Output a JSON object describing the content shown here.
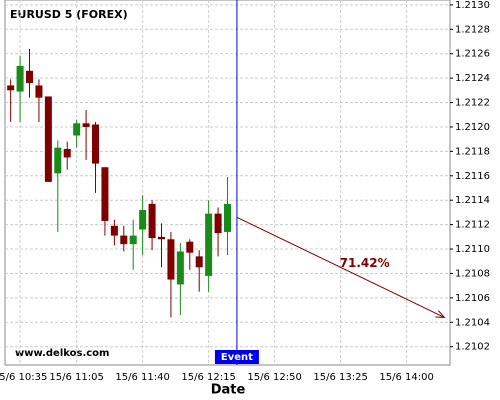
{
  "chart_data": {
    "type": "candlestick",
    "title": "EURUSD 5 (FOREX)",
    "watermark": "www.delkos.com",
    "x_label": "Date",
    "x": [
      "15/6 10:30",
      "15/6 10:35",
      "15/6 10:40",
      "15/6 10:45",
      "15/6 10:50",
      "15/6 10:55",
      "15/6 11:00",
      "15/6 11:05",
      "15/6 11:10",
      "15/6 11:15",
      "15/6 11:20",
      "15/6 11:25",
      "15/6 11:30",
      "15/6 11:35",
      "15/6 11:40",
      "15/6 11:45",
      "15/6 11:50",
      "15/6 11:55",
      "15/6 12:00",
      "15/6 12:05",
      "15/6 12:10",
      "15/6 12:15",
      "15/6 12:20",
      "15/6 12:25"
    ],
    "open": [
      1.21234,
      1.21229,
      1.21246,
      1.21234,
      1.21225,
      1.21162,
      1.21182,
      1.21193,
      1.21203,
      1.21202,
      1.21167,
      1.21119,
      1.21111,
      1.21104,
      1.21116,
      1.21137,
      1.2111,
      1.21108,
      1.21071,
      1.21106,
      1.21094,
      1.21078,
      1.21129,
      1.21114
    ],
    "high": [
      1.21239,
      1.21258,
      1.21264,
      1.21239,
      1.21225,
      1.21189,
      1.21188,
      1.21206,
      1.21214,
      1.21204,
      1.21167,
      1.21124,
      1.21119,
      1.21124,
      1.21144,
      1.2114,
      1.21121,
      1.21114,
      1.21105,
      1.21108,
      1.21099,
      1.2114,
      1.21134,
      1.21159
    ],
    "low": [
      1.21204,
      1.21204,
      1.21224,
      1.21204,
      1.21155,
      1.21114,
      1.21165,
      1.21183,
      1.21173,
      1.21146,
      1.21111,
      1.21103,
      1.21098,
      1.21083,
      1.21095,
      1.21099,
      1.21085,
      1.21044,
      1.21046,
      1.21083,
      1.21065,
      1.21065,
      1.21094,
      1.21095
    ],
    "close": [
      1.2123,
      1.2125,
      1.21236,
      1.21224,
      1.21155,
      1.21183,
      1.21175,
      1.21203,
      1.212,
      1.2117,
      1.21123,
      1.21111,
      1.21104,
      1.21111,
      1.21132,
      1.21109,
      1.21108,
      1.21075,
      1.21098,
      1.21097,
      1.21085,
      1.21129,
      1.21113,
      1.21137
    ],
    "up_color": "#1a8a1a",
    "down_color": "#800000",
    "xlim": [
      "15/6 10:27",
      "15/6 14:23"
    ],
    "xticks": [
      "15/6 10:35",
      "15/6 11:05",
      "15/6 11:40",
      "15/6 12:15",
      "15/6 12:50",
      "15/6 13:25",
      "15/6 14:00"
    ],
    "ylim": [
      1.21005,
      1.21304
    ],
    "yticks": [
      {
        "value": 1.2102,
        "label": "1.2102"
      },
      {
        "value": 1.2104,
        "label": "1.2104"
      },
      {
        "value": 1.2106,
        "label": "1.2106"
      },
      {
        "value": 1.2108,
        "label": "1.2108"
      },
      {
        "value": 1.211,
        "label": "1.2110"
      },
      {
        "value": 1.2112,
        "label": "1.2112"
      },
      {
        "value": 1.2114,
        "label": "1.2114"
      },
      {
        "value": 1.2116,
        "label": "1.2116"
      },
      {
        "value": 1.2118,
        "label": "1.2118"
      },
      {
        "value": 1.212,
        "label": "1.2120"
      },
      {
        "value": 1.2122,
        "label": "1.2122"
      },
      {
        "value": 1.2124,
        "label": "1.2124"
      },
      {
        "value": 1.2126,
        "label": "1.2126"
      },
      {
        "value": 1.2128,
        "label": "1.2128"
      },
      {
        "value": 1.213,
        "label": "1.2130"
      }
    ],
    "grid": true,
    "event": {
      "label": "Event",
      "x": "15/6 12:30",
      "color": "#0000ee"
    },
    "forecast": {
      "label": "71.42%",
      "color": "#800000",
      "x": [
        "15/6 12:30",
        "15/6 14:20"
      ],
      "y": [
        1.21126,
        1.21044
      ]
    }
  }
}
